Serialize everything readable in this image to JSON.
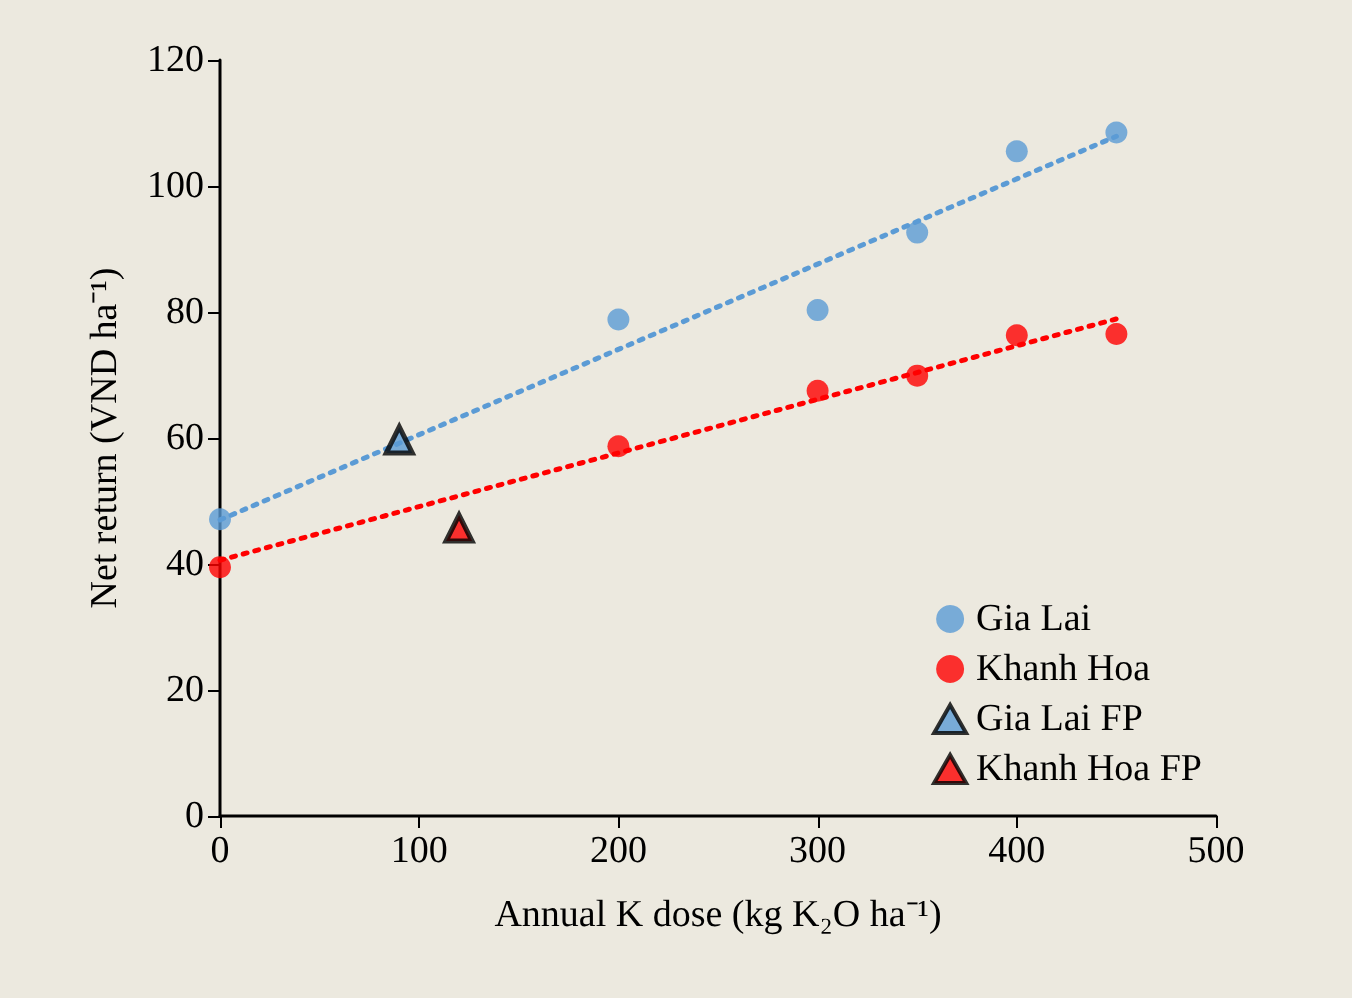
{
  "chart_data": {
    "type": "scatter",
    "xlabel": "Annual K dose (kg K₂O ha⁻¹)",
    "ylabel": "Net return (VND ha⁻¹)",
    "xlim": [
      0,
      500
    ],
    "xticks": [
      0,
      100,
      200,
      300,
      400,
      500
    ],
    "ylim": [
      0,
      120
    ],
    "yticks": [
      0,
      20,
      40,
      60,
      80,
      100,
      120
    ],
    "grid": false,
    "legend": "bottom right",
    "series": [
      {
        "name": "Gia Lai",
        "color": "#5b9bd5",
        "marker": "circle",
        "x": [
          0,
          200,
          300,
          350,
          400,
          450
        ],
        "values": [
          47.1,
          78.8,
          80.3,
          92.6,
          105.5,
          108.5
        ]
      },
      {
        "name": "Khanh Hoa",
        "color": "#ff0000",
        "marker": "circle",
        "x": [
          0,
          200,
          300,
          350,
          400,
          450
        ],
        "values": [
          39.5,
          58.7,
          67.5,
          69.9,
          76.3,
          76.5
        ]
      },
      {
        "name": "Gia Lai FP",
        "color": "#5b9bd5",
        "marker": "triangle",
        "x": [
          90
        ],
        "values": [
          59.7
        ]
      },
      {
        "name": "Khanh Hoa FP",
        "color": "#ff0000",
        "marker": "triangle",
        "x": [
          120
        ],
        "values": [
          45.7
        ]
      },
      {
        "type": "line",
        "color": "#5b9bd5",
        "marker": "none",
        "line_style": "dotted",
        "x": [
          0,
          450
        ],
        "values": [
          47,
          107.9
        ]
      },
      {
        "type": "line",
        "color": "#ff0000",
        "marker": "none",
        "line_style": "dotted",
        "x": [
          0,
          450
        ],
        "values": [
          40.6,
          78.9
        ]
      }
    ]
  }
}
